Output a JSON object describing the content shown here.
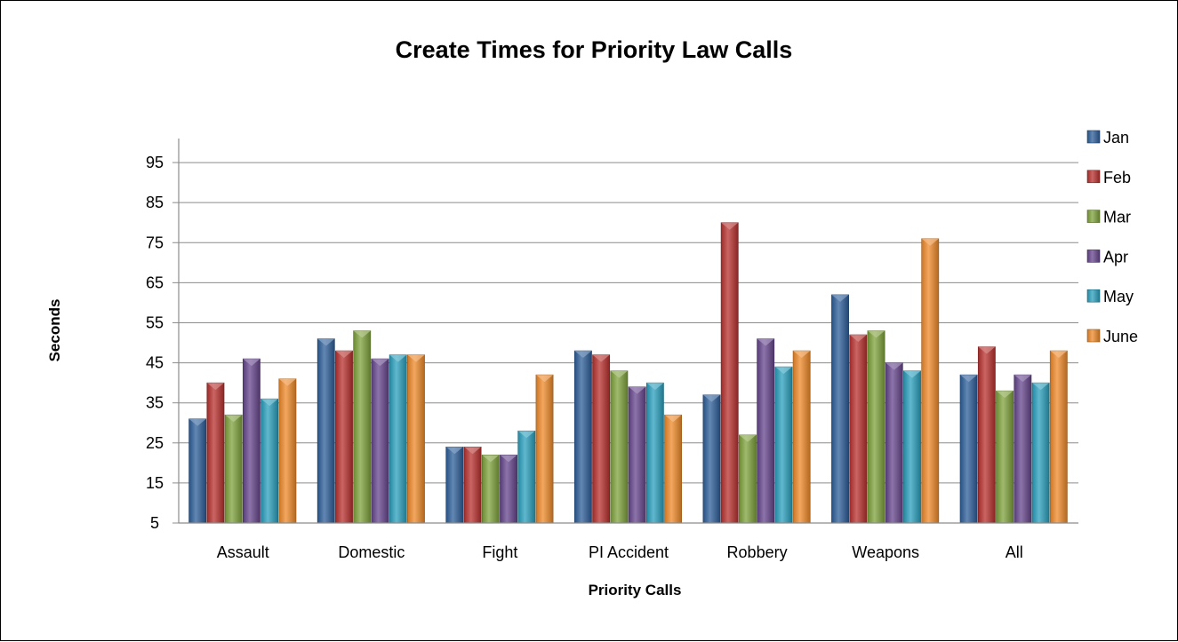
{
  "chart_data": {
    "type": "bar",
    "title": "Create Times for Priority Law Calls",
    "xlabel": "Priority Calls",
    "ylabel": "Seconds",
    "categories": [
      "Assault",
      "Domestic",
      "Fight",
      "PI Accident",
      "Robbery",
      "Weapons",
      "All"
    ],
    "yticks": [
      5,
      15,
      25,
      35,
      45,
      55,
      65,
      75,
      85,
      95
    ],
    "ylim": [
      5,
      101
    ],
    "grid": true,
    "legend_position": "right",
    "series": [
      {
        "name": "Jan",
        "color": "#2d5f9a",
        "values": [
          31,
          51,
          24,
          48,
          37,
          62,
          42
        ]
      },
      {
        "name": "Feb",
        "color": "#b8312f",
        "values": [
          40,
          48,
          24,
          47,
          80,
          52,
          49
        ]
      },
      {
        "name": "Mar",
        "color": "#7fa33c",
        "values": [
          32,
          53,
          22,
          43,
          27,
          53,
          38
        ]
      },
      {
        "name": "Apr",
        "color": "#66468d",
        "values": [
          46,
          46,
          22,
          39,
          51,
          45,
          42
        ]
      },
      {
        "name": "May",
        "color": "#2aa0bd",
        "values": [
          36,
          47,
          28,
          40,
          44,
          43,
          40
        ]
      },
      {
        "name": "June",
        "color": "#ef8a2a",
        "values": [
          41,
          47,
          42,
          32,
          48,
          76,
          48
        ]
      }
    ]
  }
}
